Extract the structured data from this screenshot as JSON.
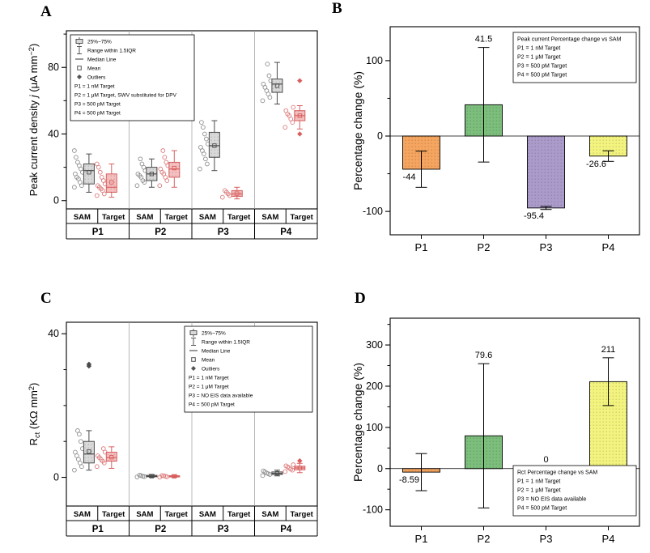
{
  "figure": {
    "panel_labels": [
      "A",
      "B",
      "C",
      "D"
    ]
  },
  "chart_data": [
    {
      "id": "A",
      "type": "box",
      "ylabel_parts": [
        {
          "t": "Peak current density "
        },
        {
          "t": "j",
          "i": true
        },
        {
          "t": " (μA mm"
        },
        {
          "t": "−2",
          "shift": "sup"
        },
        {
          "t": ")"
        }
      ],
      "ylim": [
        -5,
        102
      ],
      "yticks": [
        {
          "v": 0,
          "label": "0"
        },
        {
          "v": 40,
          "label": "40"
        },
        {
          "v": 80,
          "label": "80"
        }
      ],
      "yminor": [
        20,
        60,
        100
      ],
      "groups": [
        "P1",
        "P2",
        "P3",
        "P4"
      ],
      "series_labels": [
        "SAM",
        "Target"
      ],
      "box_colors": {
        "sam_fill": "#d9d9d9",
        "sam_stroke": "#4a4a4a",
        "sam_point": "#8f8f8f",
        "target_fill": "#f6bfbf",
        "target_stroke": "#d95f5f",
        "target_point": "#dd7a7a"
      },
      "boxes": [
        {
          "group": "P1",
          "series": "SAM",
          "q1": 10,
          "q3": 22,
          "median": 18,
          "mean": 17,
          "whisker_low": 5,
          "whisker_high": 28,
          "points": [
            8,
            9,
            11,
            13,
            14,
            16,
            17,
            19,
            21,
            23,
            26,
            30
          ],
          "outliers": []
        },
        {
          "group": "P1",
          "series": "Target",
          "q1": 5,
          "q3": 16,
          "median": 8,
          "mean": 11,
          "whisker_low": 2,
          "whisker_high": 22,
          "points": [
            3,
            4,
            6,
            7,
            8,
            9,
            10,
            12,
            14,
            17,
            20,
            22
          ],
          "outliers": []
        },
        {
          "group": "P2",
          "series": "SAM",
          "q1": 12,
          "q3": 20,
          "median": 16,
          "mean": 16,
          "whisker_low": 8,
          "whisker_high": 25,
          "points": [
            9,
            11,
            12,
            14,
            15,
            16,
            18,
            20,
            22,
            25
          ],
          "outliers": []
        },
        {
          "group": "P2",
          "series": "Target",
          "q1": 14,
          "q3": 23,
          "median": 19,
          "mean": 19.5,
          "whisker_low": 8,
          "whisker_high": 30,
          "points": [
            9,
            12,
            14,
            16,
            17,
            19,
            21,
            23,
            26,
            30
          ],
          "outliers": []
        },
        {
          "group": "P3",
          "series": "SAM",
          "q1": 26,
          "q3": 41,
          "median": 33,
          "mean": 33,
          "whisker_low": 18,
          "whisker_high": 48,
          "points": [
            19,
            22,
            25,
            28,
            30,
            32,
            34,
            37,
            40,
            44,
            47
          ],
          "outliers": []
        },
        {
          "group": "P3",
          "series": "Target",
          "q1": 2.5,
          "q3": 6,
          "median": 4,
          "mean": 4.2,
          "whisker_low": 1,
          "whisker_high": 8,
          "points": [
            2,
            3,
            4,
            5,
            6
          ],
          "outliers": []
        },
        {
          "group": "P4",
          "series": "SAM",
          "q1": 65,
          "q3": 73,
          "median": 70,
          "mean": 69,
          "whisker_low": 58,
          "whisker_high": 83,
          "points": [
            60,
            62,
            64,
            66,
            68,
            70,
            72,
            75,
            82
          ],
          "outliers": []
        },
        {
          "group": "P4",
          "series": "Target",
          "q1": 48,
          "q3": 54,
          "median": 51,
          "mean": 51,
          "whisker_low": 43,
          "whisker_high": 57,
          "points": [
            44,
            47,
            49,
            51,
            52,
            54,
            56
          ],
          "outliers": [
            72,
            40
          ]
        }
      ],
      "legend": {
        "lines": [
          {
            "icon": "box",
            "text": "25%~75%"
          },
          {
            "icon": "whisker",
            "text": "Range within 1.5IQR"
          },
          {
            "icon": "median",
            "text": "Median Line"
          },
          {
            "icon": "mean",
            "text": "Mean"
          },
          {
            "icon": "outlier",
            "text": "Outliers"
          },
          {
            "text": "P1 = 1 nM Target"
          },
          {
            "text": "P2 = 1 μM Target, SWV substituted for DPV"
          },
          {
            "text": "P3 = 500 pM Target"
          },
          {
            "text": "P4 = 500 pM Target"
          }
        ]
      }
    },
    {
      "id": "B",
      "type": "bar",
      "ylabel_parts": [
        {
          "t": "Percentage change (%)"
        }
      ],
      "ylim": [
        -131,
        145
      ],
      "yticks": [
        {
          "v": -100,
          "label": "-100"
        },
        {
          "v": 0,
          "label": "0"
        },
        {
          "v": 100,
          "label": "100"
        }
      ],
      "yminor": [
        -50,
        50
      ],
      "categories": [
        "P1",
        "P2",
        "P3",
        "P4"
      ],
      "values": [
        -44,
        41.5,
        -95.4,
        -26.6
      ],
      "errors": [
        24,
        76,
        2,
        7
      ],
      "labels": [
        "-44",
        "41.5",
        "-95.4",
        "-26.6"
      ],
      "colors": [
        "#f5a55f",
        "#7cbe7c",
        "#ab9bca",
        "#f3f37f"
      ],
      "legend": {
        "lines": [
          {
            "text": "Peak current Percentage change vs SAM"
          },
          {
            "text": "P1 = 1 nM Target"
          },
          {
            "text": "P2 = 1 μM Target"
          },
          {
            "text": "P3 = 500 pM Target"
          },
          {
            "text": "P4 = 500 pM Target"
          }
        ]
      }
    },
    {
      "id": "C",
      "type": "box",
      "ylabel_parts": [
        {
          "t": "R"
        },
        {
          "t": "ct",
          "shift": "sub"
        },
        {
          "t": " (KΩ mm"
        },
        {
          "t": "2",
          "shift": "sup"
        },
        {
          "t": ")"
        }
      ],
      "ylim": [
        -8,
        43.2
      ],
      "yticks": [
        {
          "v": 0,
          "label": "0"
        },
        {
          "v": 40,
          "label": "40"
        }
      ],
      "yminor": [
        10,
        20,
        30
      ],
      "groups": [
        "P1",
        "P2",
        "P3",
        "P4"
      ],
      "series_labels": [
        "SAM",
        "Target"
      ],
      "box_colors": {
        "sam_fill": "#d9d9d9",
        "sam_stroke": "#4a4a4a",
        "sam_point": "#8f8f8f",
        "target_fill": "#f6bfbf",
        "target_stroke": "#d95f5f",
        "target_point": "#dd7a7a"
      },
      "boxes": [
        {
          "group": "P1",
          "series": "SAM",
          "q1": 4,
          "q3": 10,
          "median": 6.5,
          "mean": 7.2,
          "whisker_low": 2,
          "whisker_high": 13,
          "points": [
            2,
            3,
            4,
            5,
            6,
            7,
            8,
            10,
            12,
            13
          ],
          "outliers": [
            31,
            31.5
          ]
        },
        {
          "group": "P1",
          "series": "Target",
          "q1": 4.5,
          "q3": 7,
          "median": 5.5,
          "mean": 5.6,
          "whisker_low": 2.5,
          "whisker_high": 8.5,
          "points": [
            3,
            4,
            4.5,
            5,
            5.5,
            6,
            7,
            8
          ],
          "outliers": []
        },
        {
          "group": "P2",
          "series": "SAM",
          "q1": 0.15,
          "q3": 0.55,
          "median": 0.3,
          "mean": 0.33,
          "whisker_low": 0,
          "whisker_high": 0.8,
          "points": [
            0.1,
            0.2,
            0.3,
            0.45,
            0.6
          ],
          "outliers": []
        },
        {
          "group": "P2",
          "series": "Target",
          "q1": 0.1,
          "q3": 0.45,
          "median": 0.25,
          "mean": 0.27,
          "whisker_low": 0,
          "whisker_high": 0.7,
          "points": [
            0.05,
            0.15,
            0.3,
            0.4,
            0.5
          ],
          "outliers": []
        },
        {
          "group": "P4",
          "series": "SAM",
          "q1": 0.8,
          "q3": 1.5,
          "median": 1.1,
          "mean": 1.15,
          "whisker_low": 0.4,
          "whisker_high": 2,
          "points": [
            0.5,
            0.8,
            1,
            1.2,
            1.5,
            1.8
          ],
          "outliers": []
        },
        {
          "group": "P4",
          "series": "Target",
          "q1": 2.1,
          "q3": 3.1,
          "median": 2.6,
          "mean": 2.6,
          "whisker_low": 1.3,
          "whisker_high": 3.9,
          "points": [
            1.6,
            2,
            2.3,
            2.6,
            2.9,
            3.2,
            3.5
          ],
          "outliers": [
            4.6
          ]
        }
      ],
      "legend": {
        "lines": [
          {
            "icon": "box",
            "text": "25%~75%"
          },
          {
            "icon": "whisker",
            "text": "Range within 1.5IQR"
          },
          {
            "icon": "median",
            "text": "Median Line"
          },
          {
            "icon": "mean",
            "text": "Mean"
          },
          {
            "icon": "outlier",
            "text": "Outliers"
          },
          {
            "text": "P1 = 1 nM Target"
          },
          {
            "text": "P2 = 1 μM Target"
          },
          {
            "text": "P3 = NO EIS data available"
          },
          {
            "text": "P4 = 500 pM Target"
          }
        ]
      }
    },
    {
      "id": "D",
      "type": "bar",
      "ylabel_parts": [
        {
          "t": "Percentage change (%)"
        }
      ],
      "ylim": [
        -140,
        365
      ],
      "yticks": [
        {
          "v": -100,
          "label": "-100"
        },
        {
          "v": 0,
          "label": "0"
        },
        {
          "v": 100,
          "label": "100"
        },
        {
          "v": 200,
          "label": "200"
        },
        {
          "v": 300,
          "label": "300"
        }
      ],
      "yminor": [
        -50,
        50,
        150,
        250,
        350
      ],
      "categories": [
        "P1",
        "P2",
        "P3",
        "P4"
      ],
      "values": [
        -8.59,
        79.6,
        0,
        211
      ],
      "errors": [
        45,
        175,
        0,
        58
      ],
      "labels": [
        "-8.59",
        "79.6",
        "0",
        "211"
      ],
      "colors": [
        "#f5a55f",
        "#7cbe7c",
        "#cccccc",
        "#f3f37f"
      ],
      "legend": {
        "lines": [
          {
            "text": "Rct Percentage change vs SAM"
          },
          {
            "text": "P1 = 1 nM Target"
          },
          {
            "text": "P2 = 1 μM Target"
          },
          {
            "text": "P3 = NO EIS data available"
          },
          {
            "text": "P4 = 500 pM Target"
          }
        ]
      }
    }
  ]
}
